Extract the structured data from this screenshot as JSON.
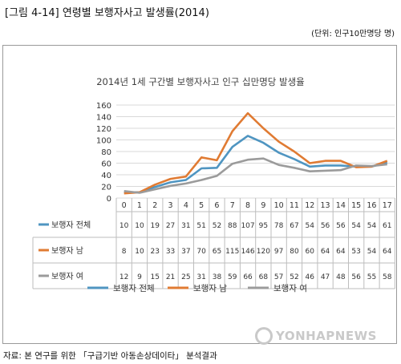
{
  "figure_title": "[그림 4-14] 연령별 보행자사고 발생률(2014)",
  "unit_note": "(단위: 인구10만명당 명)",
  "source_note": "자료: 본 연구를 위한 「구급기반 아동손상데이타」 분석결과",
  "watermark": "YONHAPNEWS",
  "chart_data": {
    "type": "line",
    "title": "2014년 1세 구간별 보행자사고 인구 십만명당 발생율",
    "xlabel": "",
    "ylabel": "",
    "categories": [
      "0",
      "1",
      "2",
      "3",
      "4",
      "5",
      "6",
      "7",
      "8",
      "9",
      "10",
      "11",
      "12",
      "13",
      "14",
      "15",
      "16",
      "17"
    ],
    "ylim": [
      0,
      160
    ],
    "yticks": [
      0,
      20,
      40,
      60,
      80,
      100,
      120,
      140,
      160
    ],
    "grid": true,
    "legend_position": "bottom",
    "series": [
      {
        "name": "보행자 전체",
        "color": "#4f95c1",
        "values": [
          10,
          10,
          19,
          27,
          31,
          51,
          52,
          88,
          107,
          95,
          78,
          67,
          54,
          56,
          56,
          54,
          54,
          61
        ]
      },
      {
        "name": "보행자 남",
        "color": "#e07b33",
        "values": [
          8,
          10,
          23,
          33,
          37,
          70,
          65,
          115,
          146,
          120,
          97,
          80,
          60,
          64,
          64,
          53,
          54,
          64
        ]
      },
      {
        "name": "보행자 여",
        "color": "#9b9b9b",
        "values": [
          12,
          9,
          15,
          21,
          25,
          31,
          38,
          59,
          66,
          68,
          57,
          52,
          46,
          47,
          48,
          56,
          55,
          58
        ]
      }
    ]
  }
}
